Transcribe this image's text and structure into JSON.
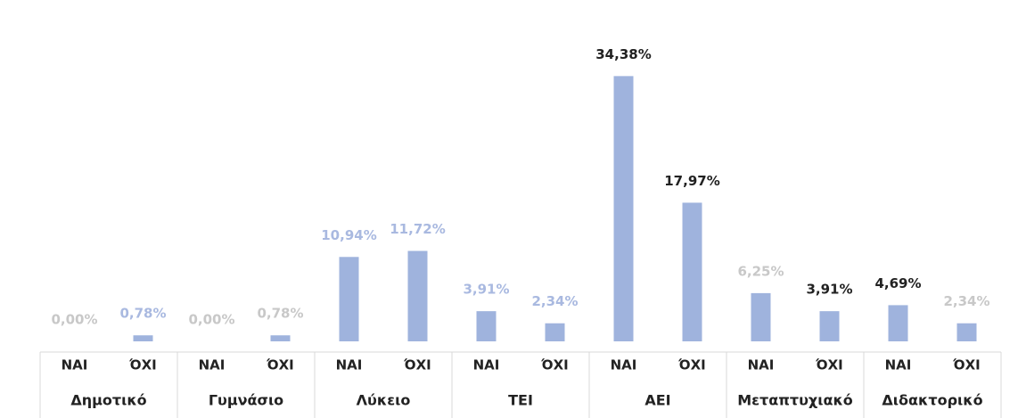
{
  "chart_data": {
    "type": "bar",
    "categories": [
      "ΝΑΙ",
      "ΌΧΙ",
      "ΝΑΙ",
      "ΌΧΙ",
      "ΝΑΙ",
      "ΌΧΙ",
      "ΝΑΙ",
      "ΌΧΙ",
      "ΝΑΙ",
      "ΌΧΙ",
      "ΝΑΙ",
      "ΌΧΙ",
      "ΝΑΙ",
      "ΌΧΙ"
    ],
    "groups": [
      "Δημοτικό",
      "Γυμνάσιο",
      "Λύκειο",
      "ΤΕΙ",
      "ΑΕΙ",
      "Μεταπτυχιακό",
      "Διδακτορικό"
    ],
    "values": [
      0,
      0.78,
      0,
      0.78,
      10.94,
      11.72,
      3.91,
      2.34,
      34.38,
      17.97,
      6.25,
      3.91,
      4.69,
      2.34
    ],
    "value_labels": [
      "0,00%",
      "0,78%",
      "0,00%",
      "0,78%",
      "10,94%",
      "11,72%",
      "3,91%",
      "2,34%",
      "34,38%",
      "17,97%",
      "6,25%",
      "3,91%",
      "4,69%",
      "2,34%"
    ],
    "label_colors": [
      "#c8c8c8",
      "#a9b9e0",
      "#c8c8c8",
      "#c8c8c8",
      "#a9b9e0",
      "#a9b9e0",
      "#a9b9e0",
      "#a9b9e0",
      "#222222",
      "#222222",
      "#c8c8c8",
      "#222222",
      "#222222",
      "#c8c8c8"
    ],
    "color": "#9fb3dd",
    "ylim": [
      0,
      35
    ]
  }
}
